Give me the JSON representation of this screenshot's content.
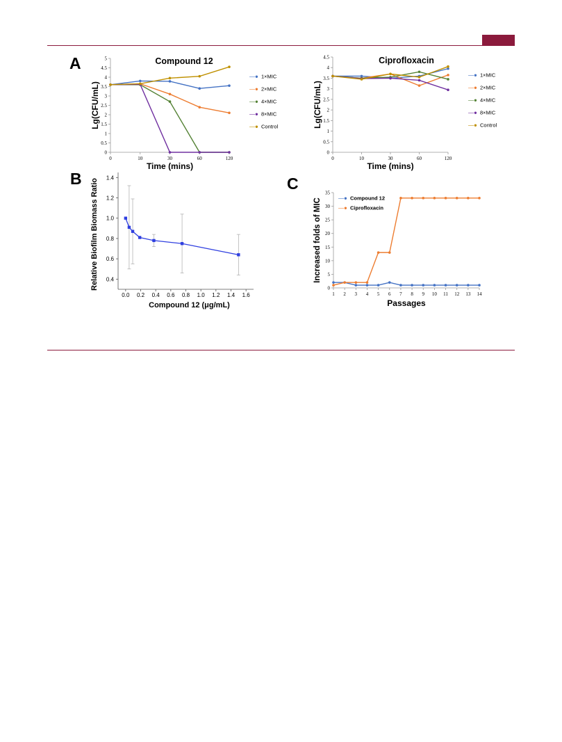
{
  "page": {
    "accent_color": "#8b1a3c",
    "rule_color": "#8b1a3c"
  },
  "panel_labels": {
    "a": "A",
    "b": "B",
    "c": "C"
  },
  "legend_marker": "—●",
  "chart_data": [
    {
      "id": "a1",
      "type": "line",
      "title": "Compound 12",
      "xlabel": "Time (mins)",
      "ylabel": "Lg(CFU/mL)",
      "categories": [
        "0",
        "10",
        "30",
        "60",
        "120"
      ],
      "ylim": [
        0,
        5
      ],
      "yticks": [
        "0",
        "0.5",
        "1",
        "1.5",
        "2",
        "2.5",
        "3",
        "3.5",
        "4",
        "4.5",
        "5"
      ],
      "legend_position": "right",
      "series": [
        {
          "name": "1×MIC",
          "color": "#4472c4",
          "values": [
            3.6,
            3.8,
            3.78,
            3.4,
            3.55
          ]
        },
        {
          "name": "2×MIC",
          "color": "#ed7d31",
          "values": [
            3.6,
            3.65,
            3.1,
            2.4,
            2.1
          ]
        },
        {
          "name": "4×MIC",
          "color": "#548235",
          "values": [
            3.6,
            3.6,
            2.7,
            0,
            0
          ]
        },
        {
          "name": "8×MIC",
          "color": "#7030a0",
          "values": [
            3.6,
            3.62,
            0,
            0,
            0
          ]
        },
        {
          "name": "Control",
          "color": "#bf9000",
          "values": [
            3.6,
            3.65,
            3.95,
            4.05,
            4.55
          ]
        }
      ]
    },
    {
      "id": "a2",
      "type": "line",
      "title": "Ciprofloxacin",
      "xlabel": "Time (mins)",
      "ylabel": "Lg(CFU/mL)",
      "categories": [
        "0",
        "10",
        "30",
        "60",
        "120"
      ],
      "ylim": [
        0,
        4.5
      ],
      "yticks": [
        "0",
        "0.5",
        "1",
        "1.5",
        "2",
        "2.5",
        "3",
        "3.5",
        "4",
        "4.5"
      ],
      "legend_position": "right",
      "series": [
        {
          "name": "1×MIC",
          "color": "#4472c4",
          "values": [
            3.6,
            3.6,
            3.5,
            3.6,
            3.95
          ]
        },
        {
          "name": "2×MIC",
          "color": "#ed7d31",
          "values": [
            3.6,
            3.5,
            3.7,
            3.15,
            3.65
          ]
        },
        {
          "name": "4×MIC",
          "color": "#548235",
          "values": [
            3.6,
            3.5,
            3.55,
            3.8,
            3.45
          ]
        },
        {
          "name": "8×MIC",
          "color": "#7030a0",
          "values": [
            3.6,
            3.48,
            3.5,
            3.4,
            2.95
          ]
        },
        {
          "name": "Control",
          "color": "#bf9000",
          "values": [
            3.6,
            3.45,
            3.7,
            3.55,
            4.05
          ]
        }
      ]
    },
    {
      "id": "b",
      "type": "line",
      "title": "",
      "xlabel": "Compound 12 (μg/mL)",
      "ylabel": "Relative Biofilm Biomass Ratio",
      "xlim": [
        -0.1,
        1.7
      ],
      "ylim": [
        0.3,
        1.45
      ],
      "xticks": [
        "0.0",
        "0.2",
        "0.4",
        "0.6",
        "0.8",
        "1.0",
        "1.2",
        "1.4",
        "1.6"
      ],
      "yticks": [
        "0.4",
        "0.6",
        "0.8",
        "1.0",
        "1.2",
        "1.4"
      ],
      "color": "#2f3fe0",
      "x": [
        0,
        0.047,
        0.094,
        0.1875,
        0.375,
        0.75,
        1.5
      ],
      "y": [
        1.0,
        0.91,
        0.87,
        0.81,
        0.78,
        0.75,
        0.64
      ],
      "error": [
        0.0,
        0.41,
        0.32,
        0.0,
        0.06,
        0.29,
        0.2
      ]
    },
    {
      "id": "c",
      "type": "line",
      "title": "",
      "xlabel": "Passages",
      "ylabel": "Increased folds of MIC",
      "categories": [
        "1",
        "2",
        "3",
        "4",
        "5",
        "6",
        "7",
        "8",
        "9",
        "10",
        "11",
        "12",
        "13",
        "14"
      ],
      "ylim": [
        0,
        35
      ],
      "yticks": [
        "0",
        "5",
        "10",
        "15",
        "20",
        "25",
        "30",
        "35"
      ],
      "legend_position": "top-left",
      "series": [
        {
          "name": "Compound 12",
          "color": "#4472c4",
          "values": [
            2,
            2,
            1,
            1,
            1,
            2,
            1,
            1,
            1,
            1,
            1,
            1,
            1,
            1
          ]
        },
        {
          "name": "Ciprofloxacin",
          "color": "#ed7d31",
          "values": [
            1,
            2,
            2,
            2,
            13,
            13,
            33,
            33,
            33,
            33,
            33,
            33,
            33,
            33
          ]
        }
      ]
    }
  ]
}
